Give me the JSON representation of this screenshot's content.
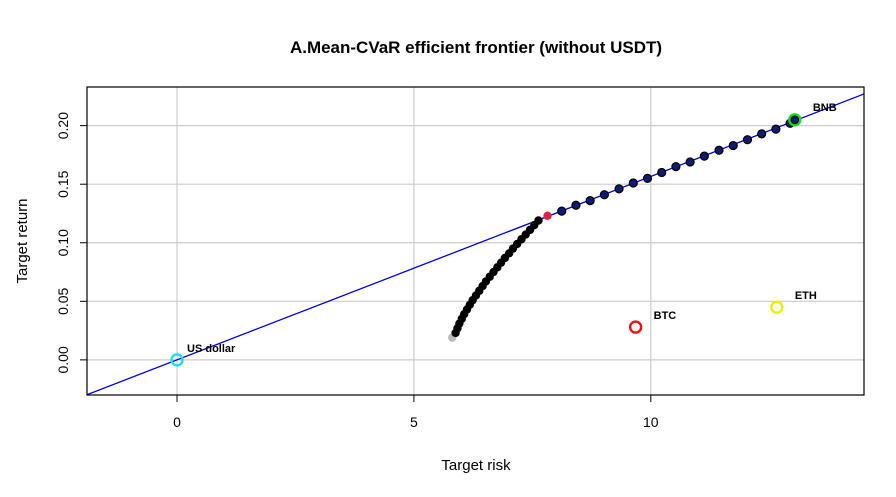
{
  "chart_data": {
    "type": "scatter",
    "title": "A.Mean-CVaR efficient frontier (without USDT)",
    "xlabel": "Target risk",
    "ylabel": "Target return",
    "xlim": [
      -1.9,
      14.5
    ],
    "ylim": [
      -0.03,
      0.233
    ],
    "x_ticks": [
      0,
      5,
      10
    ],
    "y_ticks": [
      0.0,
      0.05,
      0.1,
      0.15,
      0.2
    ],
    "x_tick_labels": [
      "0",
      "5",
      "10"
    ],
    "y_tick_labels": [
      "0.00",
      "0.05",
      "0.10",
      "0.15",
      "0.20"
    ],
    "grid": true,
    "capital_market_line": {
      "color": "#0000dd",
      "intercept": 0.0,
      "slope": 0.01566
    },
    "frontier_lower": {
      "color": "#000000",
      "points": [
        [
          5.88,
          0.023
        ],
        [
          5.92,
          0.027
        ],
        [
          5.96,
          0.031
        ],
        [
          6.01,
          0.035
        ],
        [
          6.06,
          0.039
        ],
        [
          6.12,
          0.043
        ],
        [
          6.18,
          0.047
        ],
        [
          6.24,
          0.051
        ],
        [
          6.31,
          0.055
        ],
        [
          6.38,
          0.059
        ],
        [
          6.45,
          0.063
        ],
        [
          6.52,
          0.067
        ],
        [
          6.6,
          0.071
        ],
        [
          6.68,
          0.075
        ],
        [
          6.76,
          0.079
        ],
        [
          6.84,
          0.083
        ],
        [
          6.92,
          0.087
        ],
        [
          7.01,
          0.091
        ],
        [
          7.09,
          0.095
        ],
        [
          7.18,
          0.099
        ],
        [
          7.27,
          0.103
        ],
        [
          7.36,
          0.107
        ],
        [
          7.45,
          0.111
        ],
        [
          7.54,
          0.115
        ],
        [
          7.63,
          0.119
        ]
      ]
    },
    "frontier_min_risk": {
      "color": "#bbbbbb",
      "point": [
        5.81,
        0.019
      ]
    },
    "tangency_portfolio": {
      "color": "#dd2244",
      "point": [
        7.82,
        0.123
      ]
    },
    "frontier_upper": {
      "color": "#000000",
      "fill": "#0a1d6e",
      "points": [
        [
          8.12,
          0.127
        ],
        [
          8.42,
          0.132
        ],
        [
          8.72,
          0.136
        ],
        [
          9.02,
          0.141
        ],
        [
          9.33,
          0.146
        ],
        [
          9.63,
          0.151
        ],
        [
          9.93,
          0.155
        ],
        [
          10.23,
          0.16
        ],
        [
          10.53,
          0.165
        ],
        [
          10.83,
          0.169
        ],
        [
          11.13,
          0.174
        ],
        [
          11.44,
          0.179
        ],
        [
          11.74,
          0.183
        ],
        [
          12.04,
          0.188
        ],
        [
          12.34,
          0.193
        ],
        [
          12.64,
          0.197
        ],
        [
          12.94,
          0.202
        ],
        [
          13.04,
          0.205
        ]
      ]
    },
    "assets": [
      {
        "name": "US dollar",
        "x": 0.0,
        "y": 0.0,
        "color": "#22ddee",
        "label_dx": 10,
        "label_dy": -8
      },
      {
        "name": "BTC",
        "x": 9.68,
        "y": 0.028,
        "color": "#ee1111",
        "label_dx": 18,
        "label_dy": -8
      },
      {
        "name": "ETH",
        "x": 12.66,
        "y": 0.045,
        "color": "#eeee00",
        "label_dx": 18,
        "label_dy": -8
      },
      {
        "name": "BNB",
        "x": 13.04,
        "y": 0.205,
        "color": "#11dd11",
        "label_dx": 18,
        "label_dy": -9
      }
    ]
  }
}
